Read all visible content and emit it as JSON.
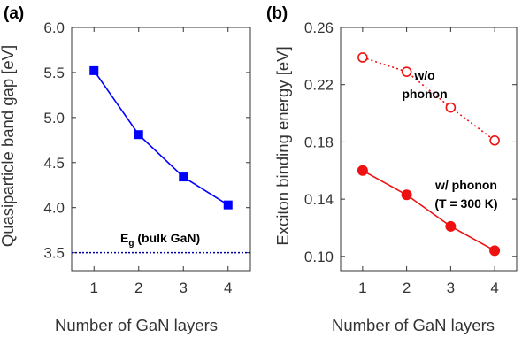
{
  "chart_data": [
    {
      "panel_label": "(a)",
      "type": "line",
      "xlabel": "Number of GaN layers",
      "ylabel": "Quasiparticle band gap [eV]",
      "x": [
        1,
        2,
        3,
        4
      ],
      "xlim": [
        0.5,
        4.5
      ],
      "ylim": [
        3.3,
        6.0
      ],
      "xticks": [
        "1",
        "2",
        "3",
        "4"
      ],
      "yticks": [
        "3.5",
        "4.0",
        "4.5",
        "5.0",
        "5.5",
        "6.0"
      ],
      "series": [
        {
          "values": [
            5.52,
            4.81,
            4.34,
            4.03
          ],
          "color": "#0000ff",
          "marker": "square",
          "line": "solid"
        }
      ],
      "reference_line": {
        "y": 3.5,
        "color": "#0000aa",
        "style": "dotted"
      },
      "annotations": [
        {
          "main": "E",
          "subscript": "g",
          "rest": " (bulk GaN)"
        }
      ]
    },
    {
      "panel_label": "(b)",
      "type": "line",
      "xlabel": "Number of GaN layers",
      "ylabel": "Exciton binding energy [eV]",
      "x": [
        1,
        2,
        3,
        4
      ],
      "xlim": [
        0.5,
        4.5
      ],
      "ylim": [
        0.09,
        0.26
      ],
      "xticks": [
        "1",
        "2",
        "3",
        "4"
      ],
      "yticks": [
        "0.10",
        "0.14",
        "0.18",
        "0.22",
        "0.26"
      ],
      "series": [
        {
          "values": [
            0.239,
            0.229,
            0.204,
            0.181
          ],
          "color": "#ee1111",
          "marker": "open-circle",
          "line": "dotted"
        },
        {
          "values": [
            0.16,
            0.143,
            0.121,
            0.104
          ],
          "color": "#ee1111",
          "marker": "filled-circle",
          "line": "solid"
        }
      ],
      "annotations": [
        {
          "lines": [
            "w/o",
            "phonon"
          ]
        },
        {
          "lines": [
            "w/ phonon",
            "(T = 300 K)"
          ]
        }
      ]
    }
  ]
}
